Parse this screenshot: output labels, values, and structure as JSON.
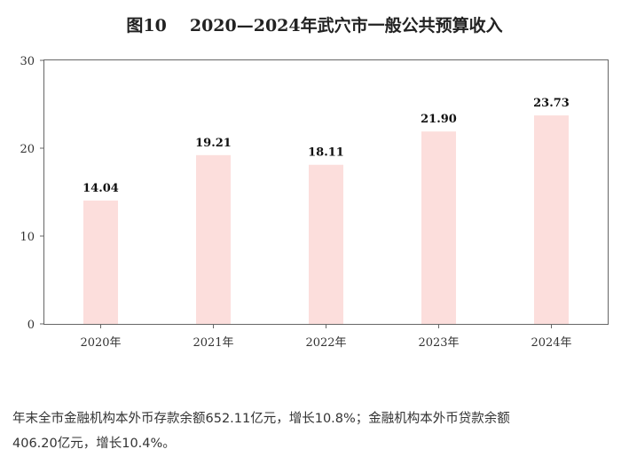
{
  "chart_data": {
    "type": "bar",
    "title_number": "图10",
    "title": "2020—2024年武穴市一般公共预算收入",
    "categories": [
      "2020年",
      "2021年",
      "2022年",
      "2023年",
      "2024年"
    ],
    "values": [
      14.04,
      19.21,
      18.11,
      21.9,
      23.73
    ],
    "value_labels": [
      "14.04",
      "19.21",
      "18.11",
      "21.90",
      "23.73"
    ],
    "ylim": [
      0,
      30
    ],
    "yticks": [
      0,
      10,
      20,
      30
    ],
    "grid": false,
    "legend": "none",
    "bar_color": "#fcdedc"
  },
  "caption": {
    "line1": "年末全市金融机构本外币存款余额652.11亿元，增长10.8%；金融机构本外币贷款余额",
    "line2": "406.20亿元，增长10.4%。"
  }
}
